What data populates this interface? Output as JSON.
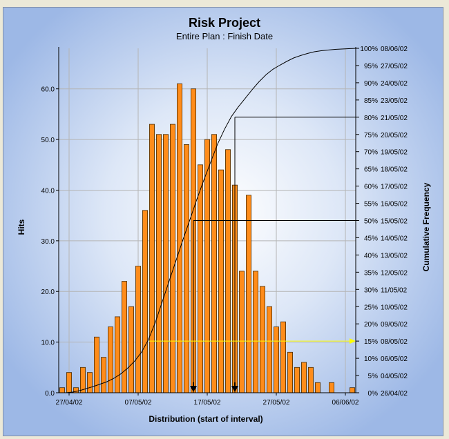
{
  "chart_data": {
    "type": "bar",
    "title": "Risk Project",
    "subtitle": "Entire Plan : Finish Date",
    "xlabel": "Distribution (start of interval)",
    "ylabel": "Hits",
    "y2label": "Cumulative Frequency",
    "ylim": [
      0,
      68
    ],
    "y_ticks": [
      "0.0",
      "10.0",
      "20.0",
      "30.0",
      "40.0",
      "50.0",
      "60.0"
    ],
    "x_tick_labels": [
      {
        "bin": 1,
        "label": "27/04/02"
      },
      {
        "bin": 11,
        "label": "07/05/02"
      },
      {
        "bin": 21,
        "label": "17/05/02"
      },
      {
        "bin": 31,
        "label": "27/05/02"
      },
      {
        "bin": 41,
        "label": "06/06/02"
      }
    ],
    "hits": [
      1,
      4,
      1,
      5,
      4,
      11,
      7,
      13,
      15,
      22,
      17,
      25,
      36,
      53,
      51,
      51,
      53,
      61,
      49,
      60,
      45,
      50,
      51,
      44,
      48,
      41,
      24,
      39,
      24,
      21,
      17,
      13,
      14,
      8,
      5,
      6,
      5,
      2,
      0,
      2,
      0,
      0,
      1
    ],
    "cumulative": [
      0,
      0.2,
      0.6,
      1.2,
      1.8,
      2.5,
      3.2,
      4.2,
      5.5,
      7.2,
      9.2,
      11.8,
      15.5,
      20.5,
      26.5,
      32.5,
      38.5,
      44.5,
      50.3,
      56.2,
      61.7,
      67,
      72.2,
      76.5,
      80.2,
      83,
      85.5,
      88,
      90.3,
      92.3,
      93.9,
      95.1,
      96.2,
      97.2,
      97.9,
      98.5,
      99,
      99.3,
      99.5,
      99.7,
      99.8,
      99.9,
      100
    ],
    "y2_ticks": [
      {
        "pct": "0%",
        "date": "26/04/02"
      },
      {
        "pct": "5%",
        "date": "04/05/02"
      },
      {
        "pct": "10%",
        "date": "06/05/02"
      },
      {
        "pct": "15%",
        "date": "08/05/02"
      },
      {
        "pct": "20%",
        "date": "09/05/02"
      },
      {
        "pct": "25%",
        "date": "10/05/02"
      },
      {
        "pct": "30%",
        "date": "11/05/02"
      },
      {
        "pct": "35%",
        "date": "12/05/02"
      },
      {
        "pct": "40%",
        "date": "13/05/02"
      },
      {
        "pct": "45%",
        "date": "14/05/02"
      },
      {
        "pct": "50%",
        "date": "15/05/02"
      },
      {
        "pct": "55%",
        "date": "16/05/02"
      },
      {
        "pct": "60%",
        "date": "17/05/02"
      },
      {
        "pct": "65%",
        "date": "18/05/02"
      },
      {
        "pct": "70%",
        "date": "19/05/02"
      },
      {
        "pct": "75%",
        "date": "20/05/02"
      },
      {
        "pct": "80%",
        "date": "21/05/02"
      },
      {
        "pct": "85%",
        "date": "23/05/02"
      },
      {
        "pct": "90%",
        "date": "24/05/02"
      },
      {
        "pct": "95%",
        "date": "27/05/02"
      },
      {
        "pct": "100%",
        "date": "08/06/02"
      }
    ],
    "reference_lines": [
      {
        "percent": 80,
        "bin": 25,
        "color": "#000000"
      },
      {
        "percent": 50,
        "bin": 19,
        "color": "#000000"
      },
      {
        "percent": 15,
        "bin": 12.6,
        "color": "#ffff00",
        "arrow": true
      }
    ],
    "markers": [
      {
        "bin": 19,
        "name": "marker-50"
      },
      {
        "bin": 25,
        "name": "marker-80"
      }
    ],
    "colors": {
      "bar": "#ff8c1a",
      "bar_stroke": "#4a2a00",
      "curve": "#000000",
      "grid": "#b4b4b4",
      "highlight": "#ffff00"
    }
  }
}
